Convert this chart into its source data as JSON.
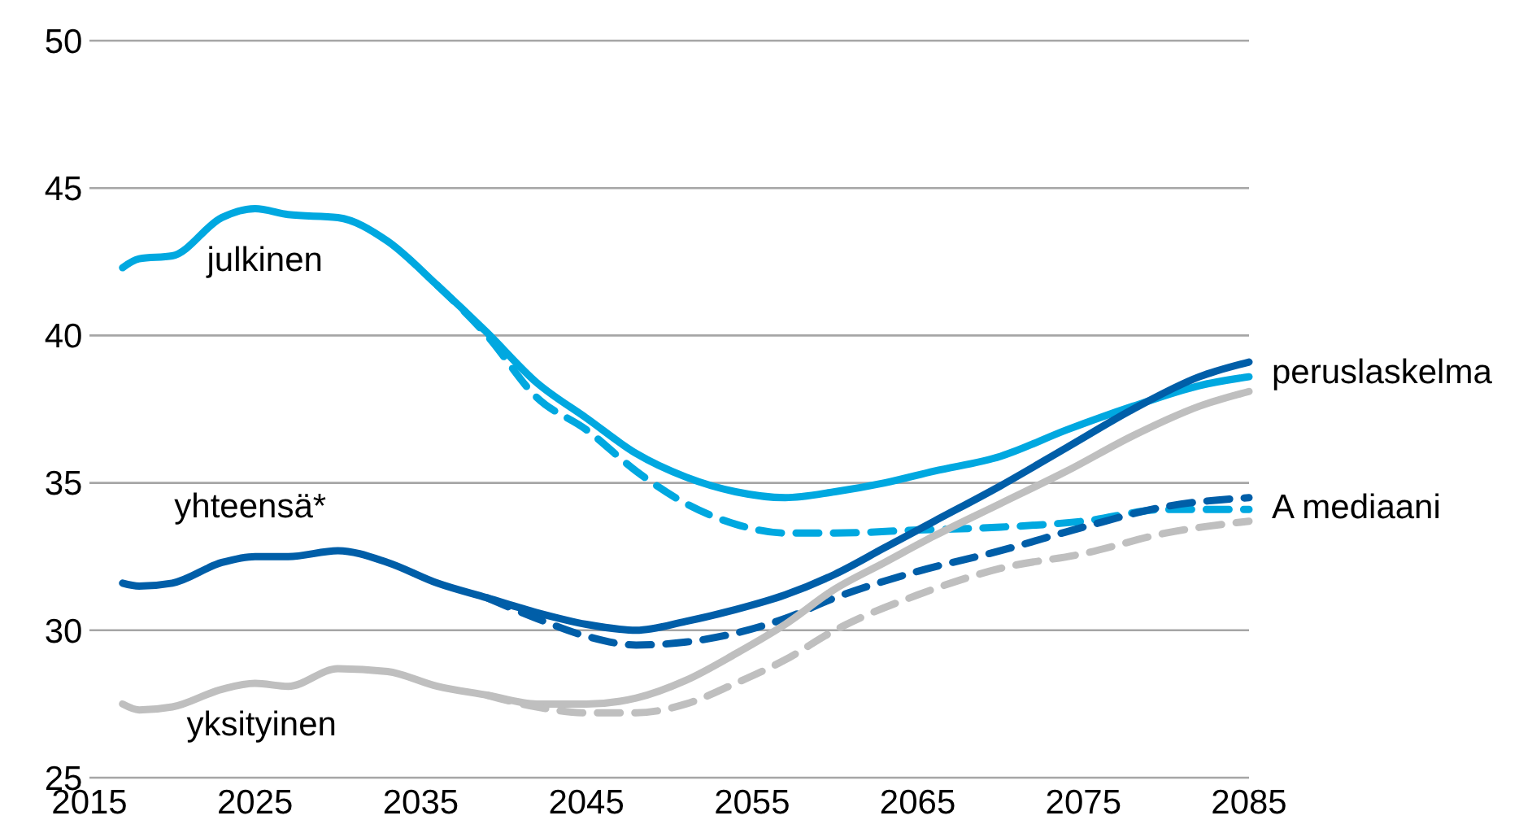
{
  "chart_data": {
    "type": "line",
    "xlim": [
      2015,
      2085
    ],
    "xticks": [
      2015,
      2025,
      2035,
      2045,
      2055,
      2065,
      2075,
      2085
    ],
    "ylim": [
      25,
      50
    ],
    "yticks": [
      25,
      30,
      35,
      40,
      45,
      50
    ],
    "grid": "y",
    "legend": false,
    "marker": "none",
    "series": [
      {
        "name": "julkinen",
        "color": "#00a8e0",
        "line_style": "solid",
        "x": [
          2017,
          2018,
          2020,
          2023,
          2025,
          2027,
          2030,
          2033,
          2036,
          2039,
          2042,
          2045,
          2048,
          2051,
          2054,
          2057,
          2060,
          2063,
          2066,
          2070,
          2074,
          2078,
          2082,
          2085
        ],
        "values": [
          42.3,
          42.6,
          42.7,
          44.0,
          44.3,
          44.1,
          44.0,
          43.2,
          41.7,
          40.1,
          38.4,
          37.2,
          36.0,
          35.2,
          34.7,
          34.5,
          34.7,
          35.0,
          35.4,
          35.9,
          36.8,
          37.6,
          38.3,
          38.6
        ]
      },
      {
        "color": "#00a8e0",
        "line_style": "dashed",
        "x": [
          2036,
          2039,
          2042,
          2045,
          2048,
          2051,
          2054,
          2057,
          2060,
          2065,
          2070,
          2075,
          2080,
          2085
        ],
        "values": [
          41.7,
          40.0,
          37.9,
          36.8,
          35.4,
          34.3,
          33.6,
          33.3,
          33.3,
          33.4,
          33.5,
          33.7,
          34.1,
          34.1
        ]
      },
      {
        "name": "yhteensä*",
        "color": "#005ea8",
        "line_style": "solid",
        "x": [
          2017,
          2018,
          2020,
          2023,
          2025,
          2027,
          2030,
          2033,
          2036,
          2039,
          2042,
          2045,
          2048,
          2051,
          2054,
          2057,
          2060,
          2063,
          2066,
          2070,
          2074,
          2078,
          2082,
          2085
        ],
        "values": [
          31.6,
          31.5,
          31.6,
          32.3,
          32.5,
          32.5,
          32.7,
          32.3,
          31.6,
          31.1,
          30.6,
          30.2,
          30.0,
          30.3,
          30.7,
          31.2,
          31.9,
          32.8,
          33.7,
          34.9,
          36.2,
          37.5,
          38.6,
          39.1
        ]
      },
      {
        "color": "#005ea8",
        "line_style": "dashed",
        "x": [
          2039,
          2042,
          2045,
          2048,
          2051,
          2054,
          2057,
          2060,
          2065,
          2070,
          2075,
          2080,
          2085
        ],
        "values": [
          31.1,
          30.4,
          29.8,
          29.5,
          29.6,
          29.9,
          30.4,
          31.1,
          32.0,
          32.7,
          33.5,
          34.2,
          34.5
        ]
      },
      {
        "name": "yksityinen",
        "color": "#bfbfbf",
        "line_style": "solid",
        "x": [
          2017,
          2018,
          2020,
          2023,
          2025,
          2027,
          2030,
          2033,
          2036,
          2039,
          2042,
          2045,
          2048,
          2051,
          2054,
          2057,
          2060,
          2063,
          2066,
          2070,
          2074,
          2078,
          2082,
          2085
        ],
        "values": [
          27.5,
          27.3,
          27.4,
          28.0,
          28.2,
          28.1,
          28.7,
          28.6,
          28.1,
          27.8,
          27.5,
          27.5,
          27.7,
          28.3,
          29.2,
          30.2,
          31.4,
          32.3,
          33.2,
          34.3,
          35.4,
          36.6,
          37.6,
          38.1
        ]
      },
      {
        "color": "#bfbfbf",
        "line_style": "dashed",
        "x": [
          2039,
          2042,
          2045,
          2048,
          2051,
          2054,
          2057,
          2060,
          2065,
          2070,
          2075,
          2080,
          2085
        ],
        "values": [
          27.8,
          27.4,
          27.2,
          27.2,
          27.5,
          28.2,
          29.0,
          30.0,
          31.2,
          32.1,
          32.6,
          33.3,
          33.7
        ]
      }
    ],
    "annotations": [
      {
        "text": "peruslaskelma",
        "x": 2085,
        "y": 38.8
      },
      {
        "text": "A mediaani",
        "x": 2085,
        "y": 34.2
      }
    ]
  }
}
